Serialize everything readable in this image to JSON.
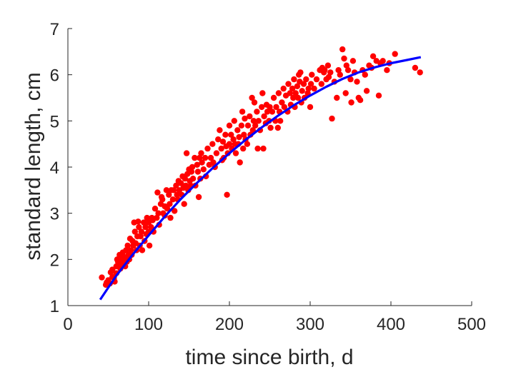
{
  "chart_data": {
    "type": "scatter",
    "title": "",
    "xlabel": "time since birth, d",
    "ylabel": "standard length, cm",
    "xlim": [
      0,
      500
    ],
    "ylim": [
      1,
      7
    ],
    "xticks": [
      0,
      100,
      200,
      300,
      400,
      500
    ],
    "yticks": [
      1,
      2,
      3,
      4,
      5,
      6,
      7
    ],
    "xtick_labels": [
      "0",
      "100",
      "200",
      "300",
      "400",
      "500"
    ],
    "ytick_labels": [
      "1",
      "2",
      "3",
      "4",
      "5",
      "6",
      "7"
    ],
    "grid": false,
    "legend": "none",
    "colors": {
      "points": "#ff0000",
      "fit": "#0000ff",
      "axes": "#262626"
    },
    "series": [
      {
        "kind": "scatter",
        "points": [
          [
            42,
            1.61
          ],
          [
            47,
            1.45
          ],
          [
            48,
            1.5
          ],
          [
            50,
            1.55
          ],
          [
            52,
            1.48
          ],
          [
            53,
            1.72
          ],
          [
            55,
            1.78
          ],
          [
            55,
            1.62
          ],
          [
            57,
            1.6
          ],
          [
            58,
            1.52
          ],
          [
            60,
            1.85
          ],
          [
            60,
            1.7
          ],
          [
            61,
            2.0
          ],
          [
            62,
            1.95
          ],
          [
            63,
            1.9
          ],
          [
            64,
            2.1
          ],
          [
            65,
            1.8
          ],
          [
            66,
            1.85
          ],
          [
            67,
            2.0
          ],
          [
            68,
            1.92
          ],
          [
            68,
            2.15
          ],
          [
            70,
            2.05
          ],
          [
            71,
            1.85
          ],
          [
            72,
            2.2
          ],
          [
            73,
            1.95
          ],
          [
            74,
            2.3
          ],
          [
            75,
            2.1
          ],
          [
            76,
            2.0
          ],
          [
            77,
            2.45
          ],
          [
            78,
            2.2
          ],
          [
            79,
            2.1
          ],
          [
            80,
            2.4
          ],
          [
            81,
            2.3
          ],
          [
            82,
            2.8
          ],
          [
            83,
            2.6
          ],
          [
            84,
            2.35
          ],
          [
            85,
            2.2
          ],
          [
            86,
            2.5
          ],
          [
            87,
            2.82
          ],
          [
            88,
            2.7
          ],
          [
            89,
            2.3
          ],
          [
            90,
            2.5
          ],
          [
            91,
            2.6
          ],
          [
            92,
            2.2
          ],
          [
            94,
            2.8
          ],
          [
            95,
            2.4
          ],
          [
            96,
            2.7
          ],
          [
            97,
            2.55
          ],
          [
            98,
            2.9
          ],
          [
            100,
            2.8
          ],
          [
            100,
            2.6
          ],
          [
            101,
            2.3
          ],
          [
            103,
            2.7
          ],
          [
            104,
            2.9
          ],
          [
            105,
            2.85
          ],
          [
            106,
            2.6
          ],
          [
            108,
            3.1
          ],
          [
            110,
            2.9
          ],
          [
            111,
            3.45
          ],
          [
            112,
            3.0
          ],
          [
            113,
            2.75
          ],
          [
            115,
            3.2
          ],
          [
            116,
            3.35
          ],
          [
            117,
            3.3
          ],
          [
            118,
            3.0
          ],
          [
            120,
            3.15
          ],
          [
            120,
            2.95
          ],
          [
            122,
            3.5
          ],
          [
            123,
            3.1
          ],
          [
            125,
            3.4
          ],
          [
            126,
            3.2
          ],
          [
            127,
            2.9
          ],
          [
            128,
            3.5
          ],
          [
            130,
            3.3
          ],
          [
            131,
            3.5
          ],
          [
            132,
            3.05
          ],
          [
            134,
            3.6
          ],
          [
            135,
            3.4
          ],
          [
            136,
            3.3
          ],
          [
            137,
            3.7
          ],
          [
            138,
            3.5
          ],
          [
            140,
            3.65
          ],
          [
            141,
            3.4
          ],
          [
            142,
            3.8
          ],
          [
            143,
            3.55
          ],
          [
            144,
            3.2
          ],
          [
            145,
            3.75
          ],
          [
            146,
            3.6
          ],
          [
            147,
            4.3
          ],
          [
            148,
            3.85
          ],
          [
            149,
            3.5
          ],
          [
            150,
            3.95
          ],
          [
            151,
            3.7
          ],
          [
            152,
            3.6
          ],
          [
            153,
            3.9
          ],
          [
            154,
            4.0
          ],
          [
            155,
            3.75
          ],
          [
            157,
            4.2
          ],
          [
            158,
            3.6
          ],
          [
            160,
            4.05
          ],
          [
            161,
            3.9
          ],
          [
            162,
            3.35
          ],
          [
            163,
            4.2
          ],
          [
            164,
            3.75
          ],
          [
            165,
            4.3
          ],
          [
            166,
            4.1
          ],
          [
            168,
            3.95
          ],
          [
            170,
            4.2
          ],
          [
            171,
            3.8
          ],
          [
            173,
            4.4
          ],
          [
            175,
            4.05
          ],
          [
            177,
            4.2
          ],
          [
            179,
            4.5
          ],
          [
            180,
            4.1
          ],
          [
            182,
            4.0
          ],
          [
            184,
            4.3
          ],
          [
            186,
            4.6
          ],
          [
            188,
            4.8
          ],
          [
            190,
            4.4
          ],
          [
            191,
            4.15
          ],
          [
            192,
            4.55
          ],
          [
            193,
            4.2
          ],
          [
            195,
            4.7
          ],
          [
            196,
            4.45
          ],
          [
            197,
            3.4
          ],
          [
            198,
            4.3
          ],
          [
            200,
            4.5
          ],
          [
            200,
            4.9
          ],
          [
            202,
            4.7
          ],
          [
            203,
            4.4
          ],
          [
            205,
            4.6
          ],
          [
            206,
            5.0
          ],
          [
            207,
            4.5
          ],
          [
            208,
            4.3
          ],
          [
            210,
            4.8
          ],
          [
            211,
            4.5
          ],
          [
            212,
            4.65
          ],
          [
            213,
            4.1
          ],
          [
            215,
            4.9
          ],
          [
            216,
            5.2
          ],
          [
            217,
            4.4
          ],
          [
            218,
            4.7
          ],
          [
            219,
            5.05
          ],
          [
            220,
            4.6
          ],
          [
            222,
            4.5
          ],
          [
            223,
            4.9
          ],
          [
            225,
            5.1
          ],
          [
            226,
            4.7
          ],
          [
            228,
            5.5
          ],
          [
            229,
            4.8
          ],
          [
            230,
            5.0
          ],
          [
            231,
            5.4
          ],
          [
            232,
            4.9
          ],
          [
            234,
            5.2
          ],
          [
            235,
            4.4
          ],
          [
            236,
            5.0
          ],
          [
            238,
            4.8
          ],
          [
            240,
            5.3
          ],
          [
            241,
            5.6
          ],
          [
            242,
            4.4
          ],
          [
            243,
            5.1
          ],
          [
            245,
            4.95
          ],
          [
            246,
            5.35
          ],
          [
            247,
            5.2
          ],
          [
            249,
            5.0
          ],
          [
            250,
            5.3
          ],
          [
            251,
            4.85
          ],
          [
            253,
            5.2
          ],
          [
            255,
            5.5
          ],
          [
            257,
            5.0
          ],
          [
            258,
            5.3
          ],
          [
            260,
            4.85
          ],
          [
            261,
            5.6
          ],
          [
            262,
            5.2
          ],
          [
            263,
            5.0
          ],
          [
            265,
            5.4
          ],
          [
            267,
            5.7
          ],
          [
            268,
            5.3
          ],
          [
            270,
            5.55
          ],
          [
            272,
            5.2
          ],
          [
            273,
            5.8
          ],
          [
            275,
            5.6
          ],
          [
            276,
            5.35
          ],
          [
            278,
            5.7
          ],
          [
            279,
            5.5
          ],
          [
            280,
            5.9
          ],
          [
            281,
            5.3
          ],
          [
            282,
            5.6
          ],
          [
            284,
            5.75
          ],
          [
            285,
            5.5
          ],
          [
            286,
            6.0
          ],
          [
            287,
            5.85
          ],
          [
            288,
            6.05
          ],
          [
            289,
            5.4
          ],
          [
            290,
            5.65
          ],
          [
            292,
            5.8
          ],
          [
            293,
            5.5
          ],
          [
            295,
            5.9
          ],
          [
            297,
            5.6
          ],
          [
            298,
            5.7
          ],
          [
            300,
            5.3
          ],
          [
            301,
            5.8
          ],
          [
            302,
            6.0
          ],
          [
            305,
            5.7
          ],
          [
            308,
            5.9
          ],
          [
            312,
            6.1
          ],
          [
            314,
            5.8
          ],
          [
            315,
            6.15
          ],
          [
            317,
            6.05
          ],
          [
            318,
            6.1
          ],
          [
            320,
            5.9
          ],
          [
            322,
            6.2
          ],
          [
            323,
            5.95
          ],
          [
            325,
            6.05
          ],
          [
            327,
            5.05
          ],
          [
            330,
            5.85
          ],
          [
            333,
            5.5
          ],
          [
            335,
            6.1
          ],
          [
            337,
            6.0
          ],
          [
            340,
            6.55
          ],
          [
            342,
            6.35
          ],
          [
            344,
            5.6
          ],
          [
            345,
            6.2
          ],
          [
            347,
            6.1
          ],
          [
            350,
            5.9
          ],
          [
            351,
            5.4
          ],
          [
            353,
            6.3
          ],
          [
            355,
            6.05
          ],
          [
            358,
            5.85
          ],
          [
            360,
            5.5
          ],
          [
            362,
            5.45
          ],
          [
            365,
            6.1
          ],
          [
            368,
            6.0
          ],
          [
            370,
            5.65
          ],
          [
            373,
            6.2
          ],
          [
            376,
            6.15
          ],
          [
            378,
            6.4
          ],
          [
            382,
            6.3
          ],
          [
            385,
            5.55
          ],
          [
            387,
            6.25
          ],
          [
            390,
            6.3
          ],
          [
            395,
            6.1
          ],
          [
            398,
            6.25
          ],
          [
            405,
            6.45
          ],
          [
            430,
            6.15
          ],
          [
            436,
            6.05
          ]
        ]
      },
      {
        "kind": "line",
        "curve": "von-bertalanffy",
        "x": [
          40,
          60,
          80,
          100,
          120,
          140,
          160,
          180,
          200,
          220,
          240,
          260,
          280,
          300,
          320,
          340,
          360,
          380,
          400,
          420,
          437
        ],
        "y": [
          1.13,
          1.65,
          2.1,
          2.52,
          2.93,
          3.31,
          3.66,
          3.99,
          4.3,
          4.59,
          4.86,
          5.11,
          5.34,
          5.55,
          5.74,
          5.91,
          6.05,
          6.16,
          6.25,
          6.32,
          6.38
        ]
      }
    ]
  }
}
